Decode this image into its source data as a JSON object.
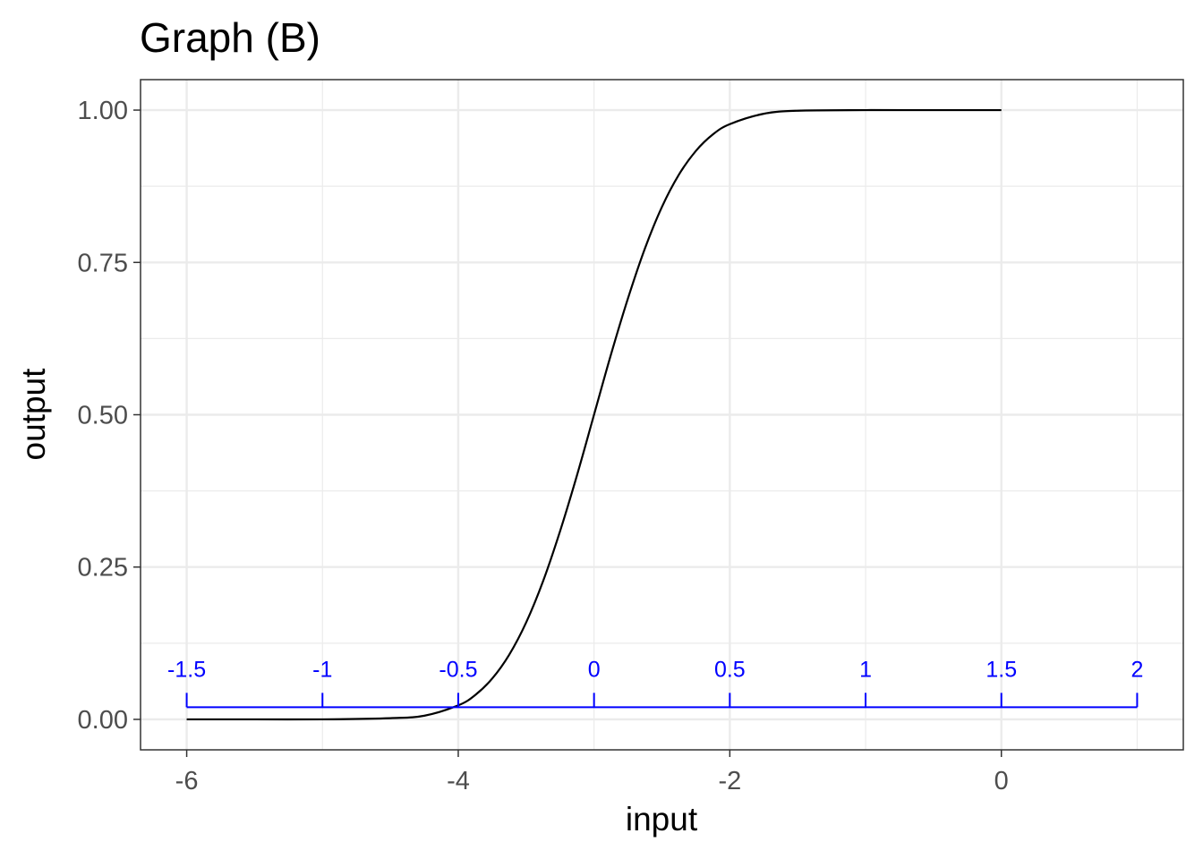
{
  "chart_data": {
    "type": "line",
    "title": "Graph (B)",
    "xlabel": "input",
    "ylabel": "output",
    "xlim": [
      -6.34,
      1.34
    ],
    "ylim": [
      -0.05,
      1.05
    ],
    "x_ticks": [
      -6,
      -4,
      -2,
      0
    ],
    "x_tick_labels": [
      "-6",
      "-4",
      "-2",
      "0"
    ],
    "y_ticks": [
      0,
      0.25,
      0.5,
      0.75,
      1
    ],
    "y_tick_labels": [
      "0.00",
      "0.25",
      "0.50",
      "0.75",
      "1.00"
    ],
    "grid": true,
    "series": [
      {
        "color": "#000000",
        "x": [
          -6.0,
          -5.5,
          -5.0,
          -4.5,
          -4.25,
          -4.0,
          -3.875,
          -3.75,
          -3.625,
          -3.5,
          -3.375,
          -3.25,
          -3.125,
          -3.0,
          -2.875,
          -2.75,
          -2.625,
          -2.5,
          -2.375,
          -2.25,
          -2.125,
          -2.0,
          -1.75,
          -1.5,
          -1.0,
          -0.5,
          0.0
        ],
        "y": [
          0.0,
          0.0,
          0.0,
          0.002,
          0.006,
          0.023,
          0.04,
          0.067,
          0.106,
          0.159,
          0.227,
          0.309,
          0.401,
          0.5,
          0.599,
          0.691,
          0.773,
          0.841,
          0.894,
          0.933,
          0.96,
          0.977,
          0.994,
          0.999,
          1.0,
          1.0,
          1.0
        ]
      }
    ],
    "annotations": {
      "ruler": {
        "color": "#0000ff",
        "y": 0.02,
        "ticks_x": [
          -6,
          -5,
          -4,
          -3,
          -2,
          -1,
          0,
          1
        ],
        "labels": [
          "-1.5",
          "-1",
          "-0.5",
          "0",
          "0.5",
          "1",
          "1.5",
          "2"
        ]
      }
    }
  }
}
